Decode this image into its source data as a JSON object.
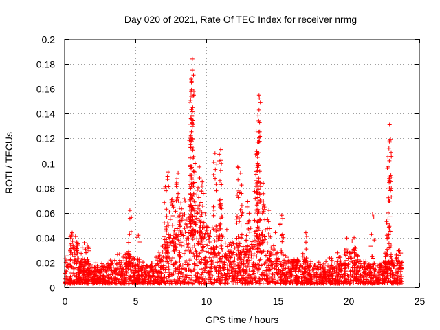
{
  "chart_data": {
    "type": "scatter",
    "title": "Day 020 of 2021, Rate Of TEC Index for receiver nrmg",
    "xlabel": "GPS time / hours",
    "ylabel": "ROTI / TECUs",
    "xlim": [
      0,
      25
    ],
    "ylim": [
      0,
      0.2
    ],
    "xticks": [
      0,
      5,
      10,
      15,
      20,
      25
    ],
    "xtick_labels": [
      "0",
      "5",
      "10",
      "15",
      "20",
      "25"
    ],
    "yticks": [
      0,
      0.02,
      0.04,
      0.06,
      0.08,
      0.1,
      0.12,
      0.14,
      0.16,
      0.18,
      0.2
    ],
    "ytick_labels": [
      "0",
      "0.02",
      "0.04",
      "0.06",
      "0.08",
      "0.1",
      "0.12",
      "0.14",
      "0.16",
      "0.18",
      "0.2"
    ],
    "grid": true,
    "marker": "+",
    "color": "#ff0000",
    "data_extent_hours": [
      0,
      23.8
    ],
    "background_density": [
      [
        0.0,
        0.012
      ],
      [
        0.5,
        0.02
      ],
      [
        1.0,
        0.018
      ],
      [
        1.5,
        0.012
      ],
      [
        2.0,
        0.009
      ],
      [
        2.5,
        0.009
      ],
      [
        3.0,
        0.01
      ],
      [
        3.5,
        0.011
      ],
      [
        4.0,
        0.013
      ],
      [
        4.5,
        0.016
      ],
      [
        5.0,
        0.01
      ],
      [
        5.5,
        0.009
      ],
      [
        6.0,
        0.01
      ],
      [
        6.5,
        0.012
      ],
      [
        7.0,
        0.02
      ],
      [
        7.5,
        0.028
      ],
      [
        8.0,
        0.03
      ],
      [
        8.5,
        0.035
      ],
      [
        9.0,
        0.038
      ],
      [
        9.5,
        0.034
      ],
      [
        10.0,
        0.03
      ],
      [
        10.5,
        0.025
      ],
      [
        11.0,
        0.022
      ],
      [
        11.5,
        0.02
      ],
      [
        12.0,
        0.022
      ],
      [
        12.5,
        0.02
      ],
      [
        13.0,
        0.018
      ],
      [
        13.5,
        0.03
      ],
      [
        14.0,
        0.025
      ],
      [
        14.5,
        0.02
      ],
      [
        15.0,
        0.018
      ],
      [
        15.5,
        0.014
      ],
      [
        16.0,
        0.012
      ],
      [
        16.5,
        0.014
      ],
      [
        17.0,
        0.014
      ],
      [
        17.5,
        0.011
      ],
      [
        18.0,
        0.01
      ],
      [
        18.5,
        0.01
      ],
      [
        19.0,
        0.011
      ],
      [
        19.5,
        0.013
      ],
      [
        20.0,
        0.018
      ],
      [
        20.5,
        0.016
      ],
      [
        21.0,
        0.011
      ],
      [
        21.5,
        0.01
      ],
      [
        22.0,
        0.01
      ],
      [
        22.5,
        0.011
      ],
      [
        23.0,
        0.012
      ],
      [
        23.5,
        0.013
      ],
      [
        23.8,
        0.012
      ]
    ],
    "peaks": [
      {
        "x": 0.5,
        "y": 0.043
      },
      {
        "x": 0.8,
        "y": 0.041
      },
      {
        "x": 1.4,
        "y": 0.036
      },
      {
        "x": 1.6,
        "y": 0.034
      },
      {
        "x": 4.6,
        "y": 0.062
      },
      {
        "x": 5.2,
        "y": 0.042
      },
      {
        "x": 7.1,
        "y": 0.081
      },
      {
        "x": 7.3,
        "y": 0.093
      },
      {
        "x": 7.6,
        "y": 0.071
      },
      {
        "x": 8.0,
        "y": 0.092
      },
      {
        "x": 8.2,
        "y": 0.068
      },
      {
        "x": 8.9,
        "y": 0.136
      },
      {
        "x": 8.9,
        "y": 0.122
      },
      {
        "x": 9.0,
        "y": 0.184
      },
      {
        "x": 9.0,
        "y": 0.175
      },
      {
        "x": 8.95,
        "y": 0.166
      },
      {
        "x": 9.2,
        "y": 0.1
      },
      {
        "x": 9.5,
        "y": 0.097
      },
      {
        "x": 9.7,
        "y": 0.085
      },
      {
        "x": 10.6,
        "y": 0.108
      },
      {
        "x": 11.0,
        "y": 0.111
      },
      {
        "x": 11.0,
        "y": 0.094
      },
      {
        "x": 12.2,
        "y": 0.097
      },
      {
        "x": 12.4,
        "y": 0.092
      },
      {
        "x": 12.9,
        "y": 0.069
      },
      {
        "x": 13.5,
        "y": 0.126
      },
      {
        "x": 13.6,
        "y": 0.117
      },
      {
        "x": 13.6,
        "y": 0.1
      },
      {
        "x": 13.7,
        "y": 0.155
      },
      {
        "x": 13.7,
        "y": 0.143
      },
      {
        "x": 14.0,
        "y": 0.084
      },
      {
        "x": 14.4,
        "y": 0.062
      },
      {
        "x": 15.3,
        "y": 0.058
      },
      {
        "x": 17.0,
        "y": 0.044
      },
      {
        "x": 20.4,
        "y": 0.04
      },
      {
        "x": 21.7,
        "y": 0.059
      },
      {
        "x": 22.7,
        "y": 0.053
      },
      {
        "x": 22.9,
        "y": 0.131
      },
      {
        "x": 22.9,
        "y": 0.118
      },
      {
        "x": 22.8,
        "y": 0.097
      },
      {
        "x": 23.6,
        "y": 0.03
      }
    ]
  }
}
